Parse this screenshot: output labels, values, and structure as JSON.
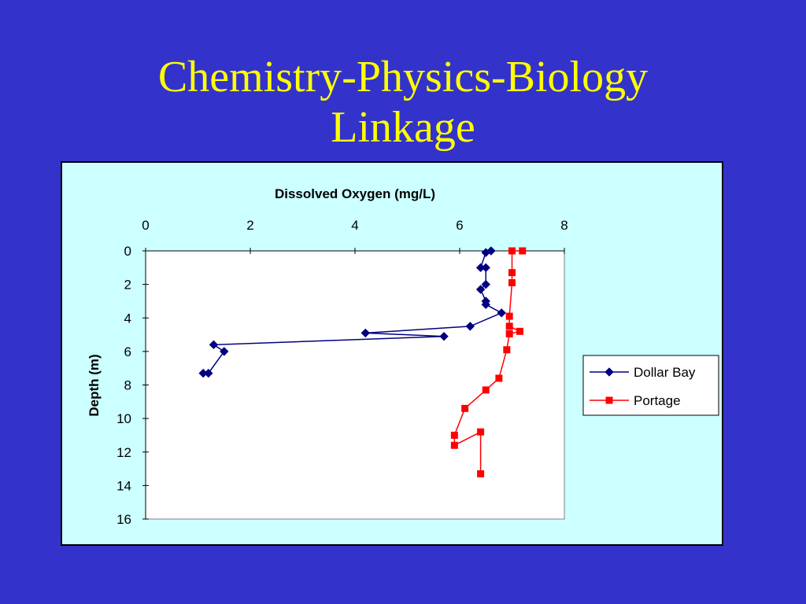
{
  "slide": {
    "title_line1": "Chemistry-Physics-Biology",
    "title_line2": "Linkage"
  },
  "colors": {
    "background": "#3333cc",
    "title": "#ffff00",
    "chart_area": "#ccffff",
    "plot_area": "#ffffff"
  },
  "chart_data": {
    "type": "line",
    "title": "Dissolved Oxygen (mg/L)",
    "xlabel": "",
    "ylabel": "Depth (m)",
    "x_axis_position": "top",
    "xlim": [
      0,
      8
    ],
    "ylim": [
      0,
      16
    ],
    "y_inverted": true,
    "x_ticks": [
      0,
      2,
      4,
      6,
      8
    ],
    "y_ticks": [
      0,
      2,
      4,
      6,
      8,
      10,
      12,
      14,
      16
    ],
    "grid": false,
    "legend_position": "right",
    "series": [
      {
        "name": "Dollar Bay",
        "color": "#000080",
        "marker": "diamond",
        "points": [
          {
            "x": 6.6,
            "y": 0.0
          },
          {
            "x": 6.5,
            "y": 0.1
          },
          {
            "x": 6.4,
            "y": 1.0
          },
          {
            "x": 6.5,
            "y": 1.0
          },
          {
            "x": 6.5,
            "y": 2.0
          },
          {
            "x": 6.4,
            "y": 2.3
          },
          {
            "x": 6.5,
            "y": 3.0
          },
          {
            "x": 6.5,
            "y": 3.2
          },
          {
            "x": 6.8,
            "y": 3.7
          },
          {
            "x": 6.2,
            "y": 4.5
          },
          {
            "x": 4.2,
            "y": 4.9
          },
          {
            "x": 5.7,
            "y": 5.1
          },
          {
            "x": 1.3,
            "y": 5.6
          },
          {
            "x": 1.5,
            "y": 6.0
          },
          {
            "x": 1.2,
            "y": 7.3
          },
          {
            "x": 1.1,
            "y": 7.3
          }
        ]
      },
      {
        "name": "Portage",
        "color": "#ff0000",
        "marker": "square",
        "points": [
          {
            "x": 7.2,
            "y": 0.0
          },
          {
            "x": 7.0,
            "y": 0.0
          },
          {
            "x": 7.0,
            "y": 1.3
          },
          {
            "x": 7.0,
            "y": 1.9
          },
          {
            "x": 6.95,
            "y": 3.9
          },
          {
            "x": 6.95,
            "y": 4.5
          },
          {
            "x": 7.15,
            "y": 4.8
          },
          {
            "x": 6.95,
            "y": 4.95
          },
          {
            "x": 6.9,
            "y": 5.9
          },
          {
            "x": 6.75,
            "y": 7.6
          },
          {
            "x": 6.5,
            "y": 8.3
          },
          {
            "x": 6.1,
            "y": 9.4
          },
          {
            "x": 5.9,
            "y": 11.0
          },
          {
            "x": 5.9,
            "y": 11.6
          },
          {
            "x": 6.4,
            "y": 10.8
          },
          {
            "x": 6.4,
            "y": 13.3
          }
        ]
      }
    ]
  }
}
